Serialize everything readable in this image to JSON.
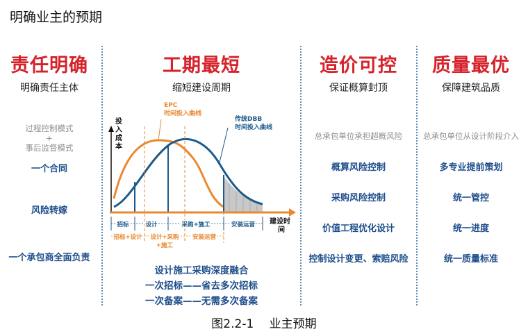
{
  "page_title": "明确业主的预期",
  "caption": "图2.2-1　 业主预期",
  "columns": {
    "c1": {
      "title": "责任明确",
      "subtitle": "明确责任主体",
      "gray_lines": [
        "过程控制模式",
        "+",
        "事后监督模式"
      ],
      "items": [
        "一个合同",
        "风险转嫁",
        "一个承包商全面负责"
      ]
    },
    "c2": {
      "title": "工期最短",
      "subtitle": "缩短建设周期",
      "summary": [
        "设计施工采购深度融合",
        "一次招标——省去多次招标",
        "一次备案——无需多次备案"
      ]
    },
    "c3": {
      "title": "造价可控",
      "subtitle": "保证概算封顶",
      "gray_line": "总承包单位承担超概风险",
      "items": [
        "概算风险控制",
        "采购风险控制",
        "价值工程优化设计",
        "控制设计变更、索赔风险"
      ]
    },
    "c4": {
      "title": "质量最优",
      "subtitle": "保障建筑品质",
      "gray_line": "总承包单位从设计阶段介入",
      "items": [
        "多专业提前策划",
        "统一管控",
        "统一进度",
        "统一质量标准"
      ]
    }
  },
  "chart": {
    "y_label": [
      "投",
      "入",
      "成",
      "本"
    ],
    "x_label": [
      "建设时",
      "间"
    ],
    "epc_label": [
      "EPC",
      "时间投入曲线"
    ],
    "dbb_label": [
      "传统DBB",
      "时间投入曲线"
    ],
    "dbb_phases": [
      "招标",
      "设计",
      "采购+施工",
      "安装运营"
    ],
    "epc_phases": [
      "招标+设计",
      "设计+采购",
      "+施工",
      "安装运营"
    ],
    "colors": {
      "epc": "#e8892f",
      "dbb": "#1c5a8a",
      "axis": "#e8892f",
      "fill": "#c8c8c8"
    }
  }
}
